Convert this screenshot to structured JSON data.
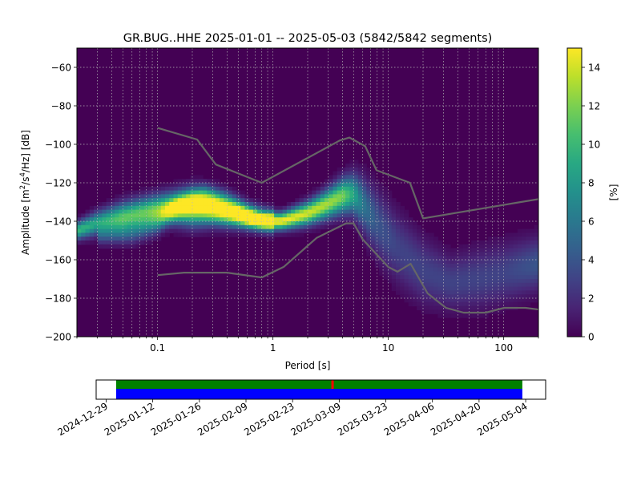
{
  "chart_data": [
    {
      "type": "heatmap",
      "title": "GR.BUG..HHE   2025-01-01 -- 2025-05-03  (5842/5842 segments)",
      "xlabel": "Period [s]",
      "ylabel_parts": [
        "Amplitude [m",
        "2",
        "/s",
        "4",
        "/Hz] [dB]"
      ],
      "xscale": "log",
      "xlim": [
        0.02,
        200
      ],
      "ylim": [
        -200,
        -50
      ],
      "xticks": [
        {
          "v": 0.1,
          "label": "0.1"
        },
        {
          "v": 1,
          "label": "1"
        },
        {
          "v": 10,
          "label": "10"
        },
        {
          "v": 100,
          "label": "100"
        }
      ],
      "yticks": [
        {
          "v": -60,
          "label": "−60"
        },
        {
          "v": -80,
          "label": "−80"
        },
        {
          "v": -100,
          "label": "−100"
        },
        {
          "v": -120,
          "label": "−120"
        },
        {
          "v": -140,
          "label": "−140"
        },
        {
          "v": -160,
          "label": "−160"
        },
        {
          "v": -180,
          "label": "−180"
        },
        {
          "v": -200,
          "label": "−200"
        }
      ],
      "grid": true,
      "colorbar": {
        "label": "[%]",
        "range": [
          0,
          15
        ],
        "ticks": [
          {
            "v": 0,
            "label": "0"
          },
          {
            "v": 2,
            "label": "2"
          },
          {
            "v": 4,
            "label": "4"
          },
          {
            "v": 6,
            "label": "6"
          },
          {
            "v": 8,
            "label": "8"
          },
          {
            "v": 10,
            "label": "10"
          },
          {
            "v": 12,
            "label": "12"
          },
          {
            "v": 14,
            "label": "14"
          }
        ],
        "colormap": "viridis"
      },
      "density_ridge": [
        {
          "period": 0.02,
          "db": -145,
          "spread": 3,
          "peak": 10
        },
        {
          "period": 0.03,
          "db": -141,
          "spread": 4,
          "peak": 9
        },
        {
          "period": 0.05,
          "db": -138,
          "spread": 5,
          "peak": 11
        },
        {
          "period": 0.08,
          "db": -135,
          "spread": 5,
          "peak": 11
        },
        {
          "period": 0.12,
          "db": -133,
          "spread": 5,
          "peak": 12
        },
        {
          "period": 0.2,
          "db": -133,
          "spread": 6,
          "peak": 14
        },
        {
          "period": 0.3,
          "db": -134,
          "spread": 5,
          "peak": 15
        },
        {
          "period": 0.5,
          "db": -137,
          "spread": 4,
          "peak": 15
        },
        {
          "period": 0.8,
          "db": -140,
          "spread": 3,
          "peak": 15
        },
        {
          "period": 1.2,
          "db": -140,
          "spread": 3,
          "peak": 15
        },
        {
          "period": 2,
          "db": -136,
          "spread": 4,
          "peak": 14
        },
        {
          "period": 3,
          "db": -131,
          "spread": 5,
          "peak": 13
        },
        {
          "period": 4,
          "db": -127,
          "spread": 6,
          "peak": 12
        },
        {
          "period": 5,
          "db": -126,
          "spread": 7,
          "peak": 9
        },
        {
          "period": 6,
          "db": -131,
          "spread": 9,
          "peak": 6
        },
        {
          "period": 8,
          "db": -141,
          "spread": 11,
          "peak": 4
        },
        {
          "period": 12,
          "db": -154,
          "spread": 12,
          "peak": 3
        },
        {
          "period": 20,
          "db": -166,
          "spread": 11,
          "peak": 3
        },
        {
          "period": 35,
          "db": -172,
          "spread": 9,
          "peak": 3
        },
        {
          "period": 60,
          "db": -170,
          "spread": 10,
          "peak": 3
        },
        {
          "period": 100,
          "db": -167,
          "spread": 10,
          "peak": 3
        },
        {
          "period": 200,
          "db": -162,
          "spread": 9,
          "peak": 4
        }
      ],
      "secondary_branch": [
        {
          "period": 0.03,
          "db": -148,
          "spread": 3,
          "peak": 3
        },
        {
          "period": 0.06,
          "db": -146,
          "spread": 4,
          "peak": 4
        },
        {
          "period": 0.1,
          "db": -141,
          "spread": 4,
          "peak": 5
        },
        {
          "period": 0.15,
          "db": -132,
          "spread": 4,
          "peak": 6
        },
        {
          "period": 0.25,
          "db": -127,
          "spread": 4,
          "peak": 7
        },
        {
          "period": 0.4,
          "db": -130,
          "spread": 4,
          "peak": 6
        },
        {
          "period": 0.6,
          "db": -136,
          "spread": 4,
          "peak": 6
        },
        {
          "period": 1,
          "db": -140,
          "spread": 4,
          "peak": 6
        }
      ],
      "noise_models": [
        {
          "role": "high",
          "points": [
            [
              0.1,
              -91.5
            ],
            [
              0.22,
              -97.5
            ],
            [
              0.32,
              -110.5
            ],
            [
              0.8,
              -120
            ],
            [
              3.8,
              -98
            ],
            [
              4.6,
              -96.5
            ],
            [
              6.3,
              -101
            ],
            [
              7.9,
              -113.5
            ],
            [
              15.4,
              -120
            ],
            [
              20,
              -138.5
            ],
            [
              354.8,
              -126
            ]
          ]
        },
        {
          "role": "low",
          "points": [
            [
              0.1,
              -168
            ],
            [
              0.17,
              -166.7
            ],
            [
              0.4,
              -166.7
            ],
            [
              0.8,
              -169.2
            ],
            [
              1.24,
              -163.7
            ],
            [
              2.4,
              -148.6
            ],
            [
              4.3,
              -141.1
            ],
            [
              5,
              -141.1
            ],
            [
              6,
              -149.4
            ],
            [
              10,
              -163.8
            ],
            [
              12,
              -166.2
            ],
            [
              15.6,
              -162.1
            ],
            [
              21.9,
              -177.5
            ],
            [
              31.6,
              -185
            ],
            [
              45,
              -187.5
            ],
            [
              70,
              -187.5
            ],
            [
              101,
              -185
            ],
            [
              154,
              -185
            ],
            [
              328,
              -187.5
            ]
          ]
        }
      ]
    },
    {
      "type": "timeline",
      "date_ticks": [
        "2024-12-29",
        "2025-01-12",
        "2025-01-26",
        "2025-02-09",
        "2025-02-23",
        "2025-03-09",
        "2025-03-23",
        "2025-04-06",
        "2025-04-20",
        "2025-05-04"
      ],
      "data_range": [
        "2025-01-01",
        "2025-05-03"
      ],
      "axis_range": [
        "2024-12-26",
        "2025-05-10"
      ],
      "bars": [
        {
          "name": "used-segments",
          "color": "#008000"
        },
        {
          "name": "available-data",
          "color": "#0000ff"
        }
      ],
      "gap_marker": {
        "date": "2025-03-07",
        "color": "#ff0000"
      }
    }
  ]
}
